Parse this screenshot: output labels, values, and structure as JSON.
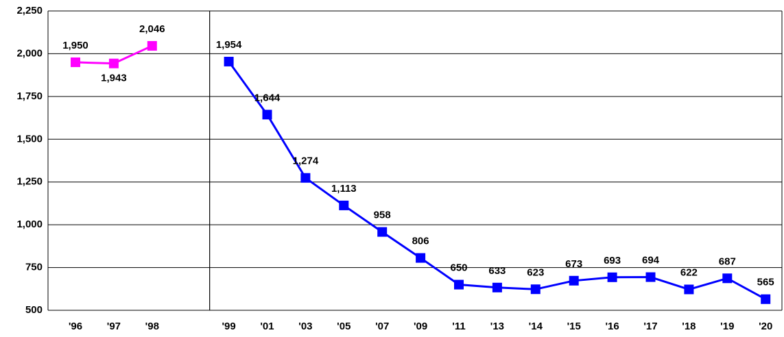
{
  "chart_data": {
    "type": "line",
    "categories": [
      "'96",
      "'97",
      "'98",
      null,
      "'99",
      "'01",
      "'03",
      "'05",
      "'07",
      "'09",
      "'11",
      "'13",
      "'14",
      "'15",
      "'16",
      "'17",
      "'18",
      "'19",
      "'20"
    ],
    "series": [
      {
        "color": "#ff00ff",
        "values": [
          1950,
          1943,
          2046,
          null,
          null,
          null,
          null,
          null,
          null,
          null,
          null,
          null,
          null,
          null,
          null,
          null,
          null,
          null,
          null
        ],
        "value_labels": [
          "1,950",
          "1,943",
          "2,046",
          null,
          null,
          null,
          null,
          null,
          null,
          null,
          null,
          null,
          null,
          null,
          null,
          null,
          null,
          null,
          null
        ]
      },
      {
        "color": "#0000ff",
        "values": [
          null,
          null,
          null,
          null,
          1954,
          1644,
          1274,
          1113,
          958,
          806,
          650,
          633,
          623,
          673,
          693,
          694,
          622,
          687,
          565
        ],
        "value_labels": [
          null,
          null,
          null,
          null,
          "1,954",
          "1,644",
          "1,274",
          "1,113",
          "958",
          "806",
          "650",
          "633",
          "623",
          "673",
          "693",
          "694",
          "622",
          "687",
          "565"
        ]
      }
    ],
    "ylim": [
      500,
      2250
    ],
    "yticks": [
      500,
      750,
      {
        "value": 1000,
        "label": "1,000"
      },
      {
        "value": 1250,
        "label": "1,250"
      },
      {
        "value": 1500,
        "label": "1,500"
      },
      {
        "value": 1750,
        "label": "1,750"
      },
      {
        "value": 2000,
        "label": "2,000"
      },
      {
        "value": 2250,
        "label": "2,250"
      }
    ],
    "grid": true
  }
}
